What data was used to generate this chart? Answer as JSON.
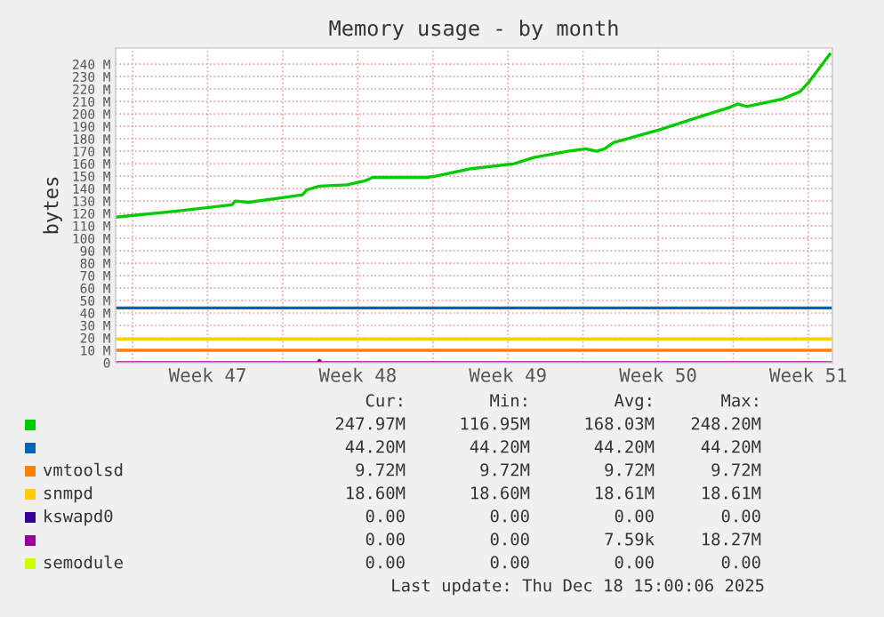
{
  "chart_data": {
    "type": "line",
    "title": "Memory usage - by month",
    "ylabel": "bytes",
    "xlim": [
      "2025-11-16T05:00",
      "2025-12-19T15:00"
    ],
    "ylim": [
      0,
      253
    ],
    "xticks": [
      {
        "value": "2025-11-17",
        "label": null
      },
      {
        "value": "2025-11-20T12:00",
        "label": "Week 47"
      },
      {
        "value": "2025-11-24",
        "label": null
      },
      {
        "value": "2025-11-27T12:00",
        "label": "Week 48"
      },
      {
        "value": "2025-12-01",
        "label": null
      },
      {
        "value": "2025-12-04T12:00",
        "label": "Week 49"
      },
      {
        "value": "2025-12-08",
        "label": null
      },
      {
        "value": "2025-12-11T12:00",
        "label": "Week 50"
      },
      {
        "value": "2025-12-15",
        "label": null
      },
      {
        "value": "2025-12-18T12:00",
        "label": "Week 51"
      }
    ],
    "yticks": [
      0,
      {
        "value": 10,
        "label": "10 M"
      },
      {
        "value": 20,
        "label": "20 M"
      },
      {
        "value": 30,
        "label": "30 M"
      },
      {
        "value": 40,
        "label": "40 M"
      },
      {
        "value": 50,
        "label": "50 M"
      },
      {
        "value": 60,
        "label": "60 M"
      },
      {
        "value": 70,
        "label": "70 M"
      },
      {
        "value": 80,
        "label": "80 M"
      },
      {
        "value": 90,
        "label": "90 M"
      },
      {
        "value": 100,
        "label": "100 M"
      },
      {
        "value": 110,
        "label": "110 M"
      },
      {
        "value": 120,
        "label": "120 M"
      },
      {
        "value": 130,
        "label": "130 M"
      },
      {
        "value": 140,
        "label": "140 M"
      },
      {
        "value": 150,
        "label": "150 M"
      },
      {
        "value": 160,
        "label": "160 M"
      },
      {
        "value": 170,
        "label": "170 M"
      },
      {
        "value": 180,
        "label": "180 M"
      },
      {
        "value": 190,
        "label": "190 M"
      },
      {
        "value": 200,
        "label": "200 M"
      },
      {
        "value": 210,
        "label": "210 M"
      },
      {
        "value": 220,
        "label": "220 M"
      },
      {
        "value": 230,
        "label": "230 M"
      },
      {
        "value": 240,
        "label": "240 M"
      }
    ],
    "grid": true,
    "legend": "bottom",
    "marker": "none",
    "line_style": "solid",
    "series": [
      {
        "color": "#00cc00",
        "x": [
          "2025-11-16T05:00",
          "2025-11-19T02:00",
          "2025-11-21T15:00",
          "2025-11-21T19:00",
          "2025-11-22T10:00",
          "2025-11-24T03:00",
          "2025-11-24T22:00",
          "2025-11-25T03:00",
          "2025-11-25T17:00",
          "2025-11-27T00:00",
          "2025-11-27T19:00",
          "2025-11-28T05:00",
          "2025-11-30T17:00",
          "2025-12-01T03:00",
          "2025-12-02T19:00",
          "2025-12-04T19:00",
          "2025-12-05T17:00",
          "2025-12-07T07:00",
          "2025-12-08T03:00",
          "2025-12-08T15:00",
          "2025-12-09T00:00",
          "2025-12-09T10:00",
          "2025-12-11T12:00",
          "2025-12-13T12:00",
          "2025-12-14T19:00",
          "2025-12-15T05:00",
          "2025-12-15T15:00",
          "2025-12-17T07:00",
          "2025-12-18T03:00",
          "2025-12-18T12:00",
          "2025-12-19T12:00"
        ],
        "values": [
          117,
          122,
          127,
          130,
          129,
          133,
          135,
          139,
          142,
          143,
          146,
          149,
          149,
          150,
          156,
          160,
          165,
          170,
          172,
          170,
          172,
          177,
          187,
          198,
          205,
          208,
          206,
          212,
          218,
          225,
          248
        ]
      },
      {
        "color": "#0066b3",
        "x": [
          "2025-11-16T05:00",
          "2025-12-19T15:00"
        ],
        "values": [
          44,
          44
        ]
      },
      {
        "name": "vmtoolsd",
        "color": "#ff8000",
        "x": [
          "2025-11-16T05:00",
          "2025-12-19T15:00"
        ],
        "values": [
          10,
          10
        ]
      },
      {
        "name": "snmpd",
        "color": "#ffcc00",
        "x": [
          "2025-11-16T05:00",
          "2025-12-19T15:00"
        ],
        "values": [
          19,
          19
        ]
      },
      {
        "name": "kswapd0",
        "color": "#330099"
      },
      {
        "color": "#990099",
        "x": [
          "2025-11-16T05:00",
          "2025-11-25T15:00",
          "2025-11-25T17:00",
          "2025-11-25T19:00",
          "2025-12-19T15:00"
        ],
        "values": [
          0,
          0,
          2,
          0,
          0
        ]
      },
      {
        "name": "semodule",
        "color": "#ccff00"
      }
    ],
    "annotations": [
      "Cur:",
      "Min:",
      "Avg:",
      "Max:",
      "247.97M",
      "116.95M",
      "168.03M",
      "248.20M",
      "44.20M",
      "44.20M",
      "44.20M",
      "44.20M",
      "9.72M",
      "9.72M",
      "9.72M",
      "9.72M",
      "18.60M",
      "18.60M",
      "18.61M",
      "18.61M",
      "0.00",
      "0.00",
      "0.00",
      "0.00",
      "0.00",
      "0.00",
      "7.59k",
      "18.27M",
      "0.00",
      "0.00",
      "0.00",
      "0.00",
      "Last update: Thu Dec 18 15:00:06 2025"
    ]
  }
}
